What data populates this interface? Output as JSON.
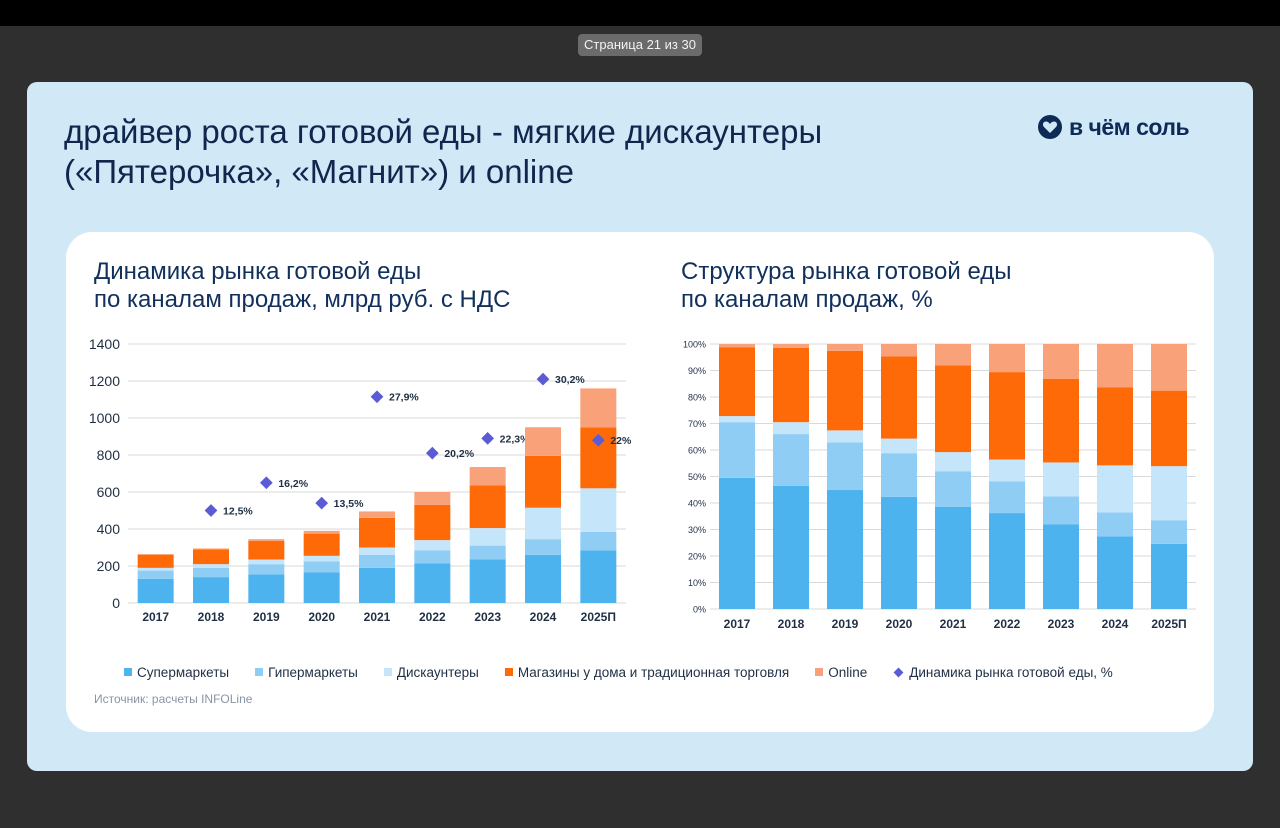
{
  "viewer": {
    "page_indicator": "Страница 21 из 30"
  },
  "slide": {
    "title_line1": "драйвер роста готовой еды - мягкие дискаунтеры",
    "title_line2": "(«Пятерочка», «Магнит») и online",
    "brand": "в чём соль",
    "source": "Источник: расчеты INFOLine"
  },
  "colors": {
    "supermarkets": "#4db3ef",
    "hypermarkets": "#8fcdf5",
    "discounters": "#c5e5fa",
    "convenience": "#fe6a08",
    "online": "#f9a27a",
    "growth": "#5b5bd6"
  },
  "legend": [
    {
      "label": "Супермаркеты",
      "color": "#4db3ef",
      "marker": "square"
    },
    {
      "label": "Гипермаркеты",
      "color": "#8fcdf5",
      "marker": "square"
    },
    {
      "label": "Дискаунтеры",
      "color": "#c5e5fa",
      "marker": "square"
    },
    {
      "label": "Магазины у дома и традиционная торговля",
      "color": "#fe6a08",
      "marker": "square"
    },
    {
      "label": "Online",
      "color": "#f9a27a",
      "marker": "square"
    },
    {
      "label": "Динамика рынка готовой еды, %",
      "color": "#5b5bd6",
      "marker": "diamond"
    }
  ],
  "chart_data": [
    {
      "type": "bar",
      "stacked": true,
      "title": "Динамика рынка готовой еды по каналам продаж, млрд руб. с НДС",
      "title_line1": "Динамика рынка готовой еды",
      "title_line2": "по каналам продаж, млрд руб. с НДС",
      "categories": [
        "2017",
        "2018",
        "2019",
        "2020",
        "2021",
        "2022",
        "2023",
        "2024",
        "2025П"
      ],
      "ylim": [
        0,
        1400
      ],
      "yticks": [
        0,
        200,
        400,
        600,
        800,
        1000,
        1200,
        1400
      ],
      "grid": true,
      "series": [
        {
          "name": "Супермаркеты",
          "values": [
            130,
            140,
            155,
            165,
            190,
            215,
            235,
            260,
            285
          ]
        },
        {
          "name": "Гипермаркеты",
          "values": [
            45,
            50,
            55,
            60,
            70,
            70,
            75,
            85,
            100
          ]
        },
        {
          "name": "Дискаунтеры",
          "values": [
            15,
            20,
            25,
            30,
            40,
            55,
            95,
            170,
            235
          ]
        },
        {
          "name": "Магазины у дома и традиционная торговля",
          "values": [
            70,
            80,
            100,
            120,
            160,
            190,
            230,
            280,
            330
          ]
        },
        {
          "name": "Online",
          "values": [
            5,
            5,
            10,
            15,
            35,
            70,
            100,
            155,
            210
          ]
        }
      ],
      "growth": {
        "name": "Динамика рынка готовой еды, %",
        "values": [
          null,
          12.5,
          16.2,
          13.5,
          27.9,
          20.2,
          22.3,
          30.2,
          22.0
        ],
        "labels": [
          "",
          "12,5%",
          "16,2%",
          "13,5%",
          "27,9%",
          "20,2%",
          "22,3%",
          "30,2%",
          "22%"
        ],
        "marker_level": [
          null,
          500,
          650,
          540,
          1115,
          810,
          890,
          1210,
          880
        ]
      }
    },
    {
      "type": "bar",
      "stacked": true,
      "percent": true,
      "title": "Структура рынка готовой еды по каналам продаж, %",
      "title_line1": "Структура рынка готовой еды",
      "title_line2": "по каналам продаж, %",
      "categories": [
        "2017",
        "2018",
        "2019",
        "2020",
        "2021",
        "2022",
        "2023",
        "2024",
        "2025П"
      ],
      "ylim": [
        0,
        100
      ],
      "yticks": [
        "0%",
        "10%",
        "20%",
        "30%",
        "40%",
        "50%",
        "60%",
        "70%",
        "80%",
        "90%",
        "100%"
      ],
      "grid": true,
      "series": [
        {
          "name": "Супермаркеты",
          "values": [
            49.5,
            46.5,
            44.9,
            42.3,
            38.5,
            36.2,
            32.0,
            27.4,
            24.6
          ]
        },
        {
          "name": "Гипермаркеты",
          "values": [
            21,
            19.5,
            18,
            16.5,
            13.5,
            12,
            10.5,
            9,
            8.9
          ]
        },
        {
          "name": "Дискаунтеры",
          "values": [
            2.3,
            4.5,
            4.5,
            5.5,
            7.2,
            8.2,
            12.8,
            17.8,
            20.4
          ]
        },
        {
          "name": "Магазины у дома и традиционная торговля",
          "values": [
            26,
            28,
            30,
            31,
            32.7,
            33,
            31.6,
            29.5,
            28.5
          ]
        },
        {
          "name": "Online",
          "values": [
            1.2,
            1.5,
            2.6,
            4.7,
            8.1,
            10.6,
            13.1,
            16.3,
            17.6
          ]
        }
      ]
    }
  ]
}
